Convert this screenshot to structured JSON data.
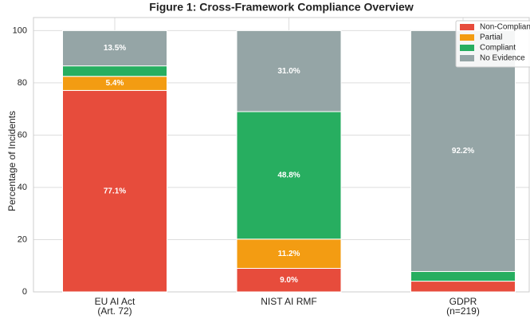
{
  "chart_data": {
    "type": "stacked_bar",
    "title": "Figure 1: Cross-Framework Compliance Overview",
    "y_label": "Percentage of Incidents",
    "categories": [
      "EU AI Act\n(Art. 72)",
      "NIST AI RMF",
      "GDPR\n(n=219)"
    ],
    "series": [
      {
        "name": "Non-Compliant",
        "color": "#e74c3c",
        "values": [
          77.1,
          9.0,
          4.1
        ],
        "value_labels": [
          "77.1%",
          "9.0%",
          null
        ]
      },
      {
        "name": "Partial",
        "color": "#f39c12",
        "values": [
          5.4,
          11.2,
          0
        ],
        "value_labels": [
          "5.4%",
          "11.2%",
          null
        ]
      },
      {
        "name": "Compliant",
        "color": "#27ae60",
        "values": [
          4.0,
          48.8,
          3.7
        ],
        "value_labels": [
          null,
          "48.8%",
          null
        ]
      },
      {
        "name": "No Evidence",
        "color": "#95a5a6",
        "values": [
          13.5,
          31.0,
          92.2
        ],
        "value_labels": [
          "13.5%",
          "31.0%",
          "92.2%"
        ]
      }
    ],
    "ylim": [
      0,
      105
    ],
    "yticks": [
      0,
      20,
      40,
      60,
      80,
      100
    ],
    "grid": true,
    "legend": "upper right"
  }
}
